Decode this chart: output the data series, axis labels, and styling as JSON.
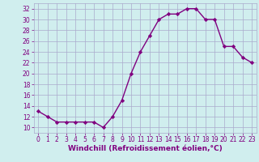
{
  "x": [
    0,
    1,
    2,
    3,
    4,
    5,
    6,
    7,
    8,
    9,
    10,
    11,
    12,
    13,
    14,
    15,
    16,
    17,
    18,
    19,
    20,
    21,
    22,
    23
  ],
  "y": [
    13,
    12,
    11,
    11,
    11,
    11,
    11,
    10,
    12,
    15,
    20,
    24,
    27,
    30,
    31,
    31,
    32,
    32,
    30,
    30,
    25,
    25,
    23,
    22
  ],
  "line_color": "#800080",
  "marker": "D",
  "marker_size": 2.2,
  "xlabel": "Windchill (Refroidissement éolien,°C)",
  "xlabel_fontsize": 6.5,
  "ylim": [
    9,
    33
  ],
  "xlim": [
    -0.5,
    23.5
  ],
  "yticks": [
    10,
    12,
    14,
    16,
    18,
    20,
    22,
    24,
    26,
    28,
    30,
    32
  ],
  "xticks": [
    0,
    1,
    2,
    3,
    4,
    5,
    6,
    7,
    8,
    9,
    10,
    11,
    12,
    13,
    14,
    15,
    16,
    17,
    18,
    19,
    20,
    21,
    22,
    23
  ],
  "background_color": "#d0eeee",
  "grid_color": "#aaaacc",
  "tick_label_fontsize": 5.5,
  "line_width": 1.0
}
